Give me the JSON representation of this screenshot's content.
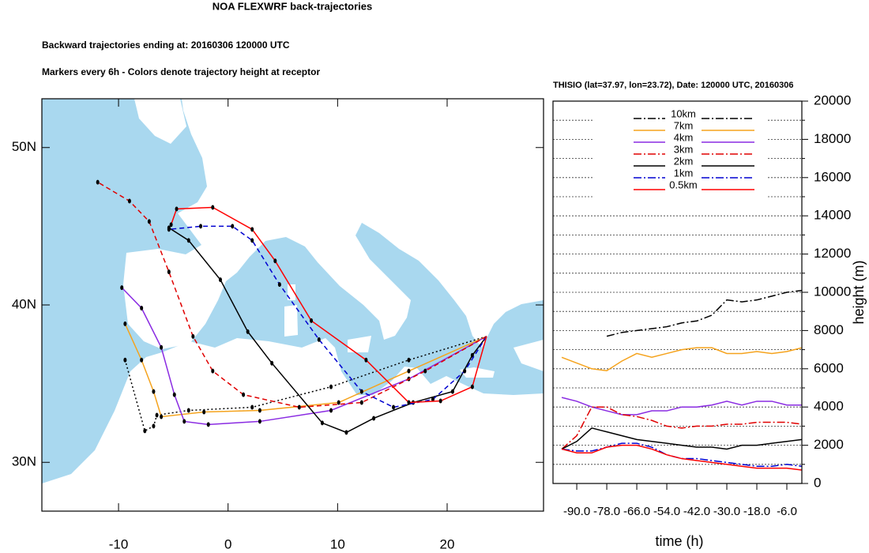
{
  "chart_data": [
    {
      "type": "map",
      "title": "NOA FLEXWRF back-trajectories",
      "subtitle": "Backward trajectories ending at: 20160306  120000 UTC",
      "annotation": "Markers every 6h - Colors denote trajectory height at receptor",
      "xlim": [
        -17,
        28.8
      ],
      "ylim": [
        26.9,
        53.1
      ],
      "xticks": [
        -10,
        0,
        10,
        20
      ],
      "yticks": [
        {
          "value": 30,
          "label": "30N"
        },
        {
          "value": 40,
          "label": "40N"
        },
        {
          "value": 50,
          "label": "50N"
        }
      ],
      "series": [
        {
          "color": "#000000",
          "dash": "dotted",
          "x": [
            23.6,
            16.5,
            9.4,
            2.2,
            -3.6,
            -6.5,
            -6.8,
            -7.6,
            -9.4
          ],
          "y": [
            38.0,
            36.5,
            34.8,
            33.5,
            33.3,
            33.0,
            32.3,
            32.0,
            36.5
          ]
        },
        {
          "color": "#f5a31d",
          "dash": "solid",
          "x": [
            23.6,
            16.5,
            10.1,
            2.9,
            -2.2,
            -6.1,
            -6.8,
            -7.9,
            -9.4
          ],
          "y": [
            38.0,
            35.8,
            33.8,
            33.3,
            33.2,
            32.9,
            34.5,
            36.5,
            38.8
          ]
        },
        {
          "color": "#8a2be2",
          "dash": "solid",
          "x": [
            23.6,
            16.5,
            9.4,
            2.9,
            -1.8,
            -4.0,
            -4.9,
            -6.1,
            -7.9,
            -9.7
          ],
          "y": [
            38.0,
            35.3,
            33.3,
            32.6,
            32.4,
            32.6,
            34.3,
            37.3,
            39.8,
            41.1
          ]
        },
        {
          "color": "#e00000",
          "dash": "dashed",
          "x": [
            23.6,
            18.0,
            12.2,
            6.5,
            1.4,
            -1.4,
            -3.2,
            -5.4,
            -7.2,
            -9.0,
            -11.9
          ],
          "y": [
            38.0,
            35.8,
            33.8,
            33.5,
            34.3,
            35.8,
            38.0,
            42.1,
            45.3,
            46.6,
            47.8
          ]
        },
        {
          "color": "#000000",
          "dash": "solid",
          "x": [
            23.6,
            22.3,
            20.5,
            16.9,
            13.3,
            10.8,
            8.6,
            4.0,
            1.8,
            -0.7,
            -3.6,
            -5.4
          ],
          "y": [
            38.0,
            36.8,
            34.5,
            33.8,
            32.8,
            31.9,
            32.5,
            36.3,
            38.3,
            41.6,
            44.1,
            44.9
          ]
        },
        {
          "color": "#0000d0",
          "dash": "dashed",
          "x": [
            23.6,
            21.6,
            18.7,
            15.1,
            12.2,
            8.3,
            4.7,
            2.2,
            0.4,
            -2.5,
            -5.4
          ],
          "y": [
            38.0,
            35.8,
            34.0,
            33.5,
            34.5,
            37.8,
            41.3,
            44.1,
            45.0,
            45.0,
            44.8
          ]
        },
        {
          "color": "#ff0000",
          "dash": "solid",
          "x": [
            23.6,
            22.3,
            19.4,
            16.5,
            12.6,
            7.6,
            4.3,
            2.2,
            -1.4,
            -4.7,
            -5.2
          ],
          "y": [
            38.0,
            34.8,
            33.9,
            33.8,
            36.5,
            39.0,
            42.8,
            44.8,
            46.2,
            46.1,
            45.1
          ]
        }
      ]
    },
    {
      "type": "line",
      "title": "THISIO (lat=37.97,  lon=23.72), Date: 120000 UTC, 20160306",
      "xlabel": "time (h)",
      "ylabel": "height (m)",
      "x": [
        -96,
        -90,
        -84,
        -78,
        -72,
        -66,
        -60,
        -54,
        -48,
        -42,
        -36,
        -30,
        -24,
        -18,
        -12,
        -6,
        0
      ],
      "xlim": [
        -99.5,
        0
      ],
      "ylim": [
        0,
        20000
      ],
      "xticks": [
        {
          "value": -90,
          "label": "-90.0"
        },
        {
          "value": -78,
          "label": "-78.0"
        },
        {
          "value": -66,
          "label": "-66.0"
        },
        {
          "value": -54,
          "label": "-54.0"
        },
        {
          "value": -42,
          "label": "-42.0"
        },
        {
          "value": -30,
          "label": "-30.0"
        },
        {
          "value": -18,
          "label": "-18.0"
        },
        {
          "value": -6,
          "label": "-6.0"
        }
      ],
      "yticks": [
        0,
        2000,
        4000,
        6000,
        8000,
        10000,
        12000,
        14000,
        16000,
        18000,
        20000
      ],
      "minor_yticks": [
        1000,
        3000,
        5000,
        7000,
        9000,
        11000,
        13000,
        15000,
        17000,
        19000
      ],
      "grid": true,
      "series": [
        {
          "name": "10km",
          "color": "#000000",
          "dash": "dashdot",
          "values": [
            null,
            null,
            null,
            7700,
            7900,
            8000,
            8100,
            8200,
            8400,
            8500,
            8800,
            9600,
            9500,
            9600,
            9800,
            10000,
            10100
          ]
        },
        {
          "name": "7km",
          "color": "#f5a31d",
          "dash": "solid",
          "values": [
            6600,
            6300,
            6000,
            5900,
            6400,
            6800,
            6600,
            6800,
            7000,
            7100,
            7100,
            6800,
            6800,
            6900,
            6800,
            6900,
            7100
          ]
        },
        {
          "name": "4km",
          "color": "#8a2be2",
          "dash": "solid",
          "values": [
            4500,
            4300,
            4000,
            3800,
            3600,
            3600,
            3800,
            3800,
            4000,
            4000,
            4100,
            4300,
            4100,
            4300,
            4300,
            4100,
            4100
          ]
        },
        {
          "name": "3km",
          "color": "#e00000",
          "dash": "dashdot",
          "values": [
            1800,
            2500,
            4000,
            4000,
            3600,
            3500,
            3300,
            3000,
            2900,
            3000,
            3000,
            3100,
            3100,
            3200,
            3200,
            3200,
            3100
          ]
        },
        {
          "name": "2km",
          "color": "#000000",
          "dash": "solid",
          "values": [
            1800,
            2200,
            2900,
            2700,
            2500,
            2300,
            2200,
            2100,
            2000,
            1900,
            1900,
            1800,
            2000,
            2000,
            2100,
            2200,
            2300
          ]
        },
        {
          "name": "1km",
          "color": "#0000d0",
          "dash": "dashdot",
          "values": [
            1800,
            1700,
            1700,
            1900,
            2100,
            2100,
            1900,
            1500,
            1300,
            1300,
            1200,
            1100,
            1000,
            900,
            900,
            1000,
            900
          ]
        },
        {
          "name": "0.5km",
          "color": "#ff0000",
          "dash": "solid",
          "values": [
            1800,
            1600,
            1600,
            1900,
            2000,
            2000,
            1800,
            1500,
            1300,
            1200,
            1100,
            1000,
            900,
            800,
            800,
            800,
            700
          ]
        }
      ]
    }
  ]
}
